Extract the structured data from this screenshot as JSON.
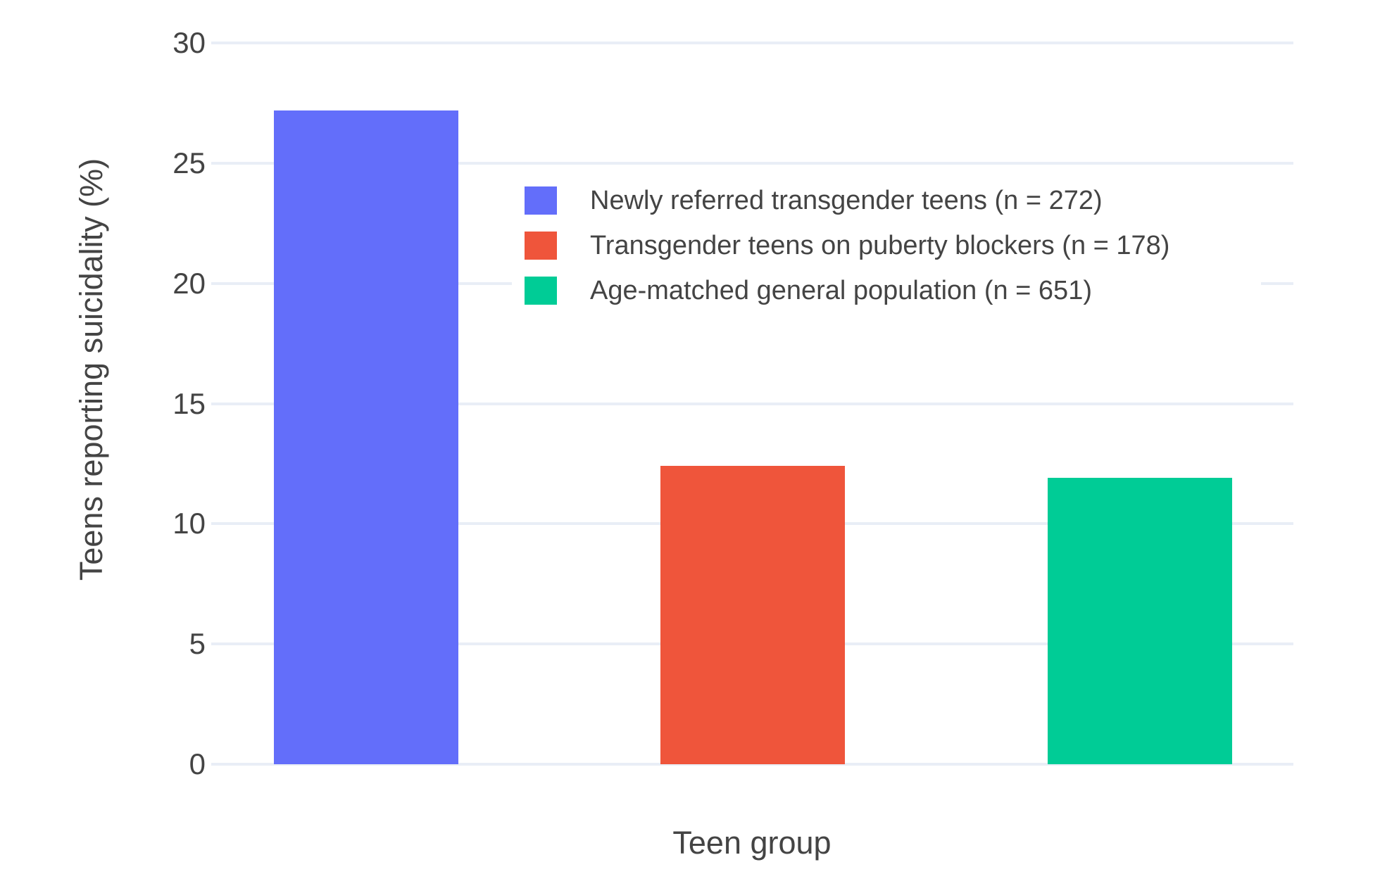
{
  "chart_data": {
    "type": "bar",
    "title": "",
    "xlabel": "Teen group",
    "ylabel": "Teens reporting suicidality (%)",
    "ylim": [
      0,
      30
    ],
    "yticks": [
      0,
      5,
      10,
      15,
      20,
      25,
      30
    ],
    "grid": true,
    "legend_position": "inside-top-center",
    "categories": [
      "Newly referred transgender teens (n = 272)",
      "Transgender teens on puberty blockers (n = 178)",
      "Age-matched general population (n = 651)"
    ],
    "series": [
      {
        "name": "Newly referred transgender teens (n = 272)",
        "value": 27.2,
        "color": "#636EFA"
      },
      {
        "name": "Transgender teens on puberty blockers (n = 178)",
        "value": 12.4,
        "color": "#EF553B"
      },
      {
        "name": "Age-matched general population (n = 651)",
        "value": 11.9,
        "color": "#00CC96"
      }
    ]
  },
  "colors": {
    "background": "#FFFFFF",
    "gridline": "#E9EEF6",
    "text": "#444444"
  }
}
